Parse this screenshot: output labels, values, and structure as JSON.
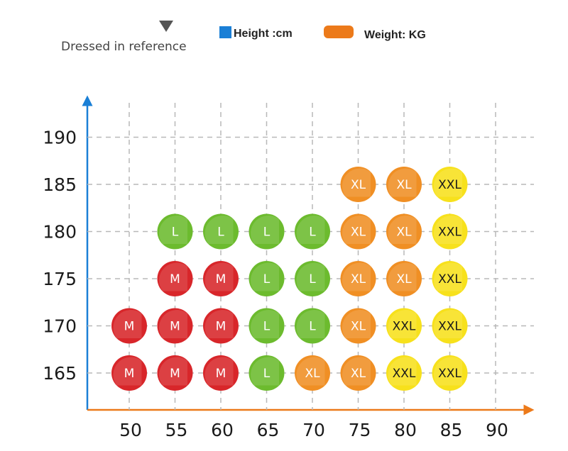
{
  "legend": {
    "reference_label": "Dressed in reference",
    "height_label": "Height :cm",
    "weight_label": "Weight: KG",
    "height_color": "#1a7fd6",
    "weight_color": "#ec7a1a"
  },
  "size_colors": {
    "M": "#d8262a",
    "L": "#6cbb2e",
    "XL": "#f08f24",
    "XXL": "#f7e11c"
  },
  "chart_data": {
    "type": "scatter",
    "xlabel": "Weight: KG",
    "ylabel": "Height :cm",
    "x_ticks": [
      "50",
      "55",
      "60",
      "65",
      "70",
      "75",
      "80",
      "85",
      "90"
    ],
    "y_ticks": [
      "165",
      "170",
      "175",
      "180",
      "185",
      "190"
    ],
    "xlim": [
      50,
      90
    ],
    "ylim": [
      165,
      190
    ],
    "grid": true,
    "points": [
      {
        "weight": 50,
        "height": 165,
        "size": "M"
      },
      {
        "weight": 55,
        "height": 165,
        "size": "M"
      },
      {
        "weight": 60,
        "height": 165,
        "size": "M"
      },
      {
        "weight": 65,
        "height": 165,
        "size": "L"
      },
      {
        "weight": 70,
        "height": 165,
        "size": "XL"
      },
      {
        "weight": 75,
        "height": 165,
        "size": "XL"
      },
      {
        "weight": 80,
        "height": 165,
        "size": "XXL"
      },
      {
        "weight": 85,
        "height": 165,
        "size": "XXL"
      },
      {
        "weight": 50,
        "height": 170,
        "size": "M"
      },
      {
        "weight": 55,
        "height": 170,
        "size": "M"
      },
      {
        "weight": 60,
        "height": 170,
        "size": "M"
      },
      {
        "weight": 65,
        "height": 170,
        "size": "L"
      },
      {
        "weight": 70,
        "height": 170,
        "size": "L"
      },
      {
        "weight": 75,
        "height": 170,
        "size": "XL"
      },
      {
        "weight": 80,
        "height": 170,
        "size": "XXL"
      },
      {
        "weight": 85,
        "height": 170,
        "size": "XXL"
      },
      {
        "weight": 55,
        "height": 175,
        "size": "M"
      },
      {
        "weight": 60,
        "height": 175,
        "size": "M"
      },
      {
        "weight": 65,
        "height": 175,
        "size": "L"
      },
      {
        "weight": 70,
        "height": 175,
        "size": "L"
      },
      {
        "weight": 75,
        "height": 175,
        "size": "XL"
      },
      {
        "weight": 80,
        "height": 175,
        "size": "XL"
      },
      {
        "weight": 85,
        "height": 175,
        "size": "XXL"
      },
      {
        "weight": 55,
        "height": 180,
        "size": "L"
      },
      {
        "weight": 60,
        "height": 180,
        "size": "L"
      },
      {
        "weight": 65,
        "height": 180,
        "size": "L"
      },
      {
        "weight": 70,
        "height": 180,
        "size": "L"
      },
      {
        "weight": 75,
        "height": 180,
        "size": "XL"
      },
      {
        "weight": 80,
        "height": 180,
        "size": "XL"
      },
      {
        "weight": 85,
        "height": 180,
        "size": "XXL"
      },
      {
        "weight": 75,
        "height": 185,
        "size": "XL"
      },
      {
        "weight": 80,
        "height": 185,
        "size": "XL"
      },
      {
        "weight": 85,
        "height": 185,
        "size": "XXL"
      }
    ]
  }
}
